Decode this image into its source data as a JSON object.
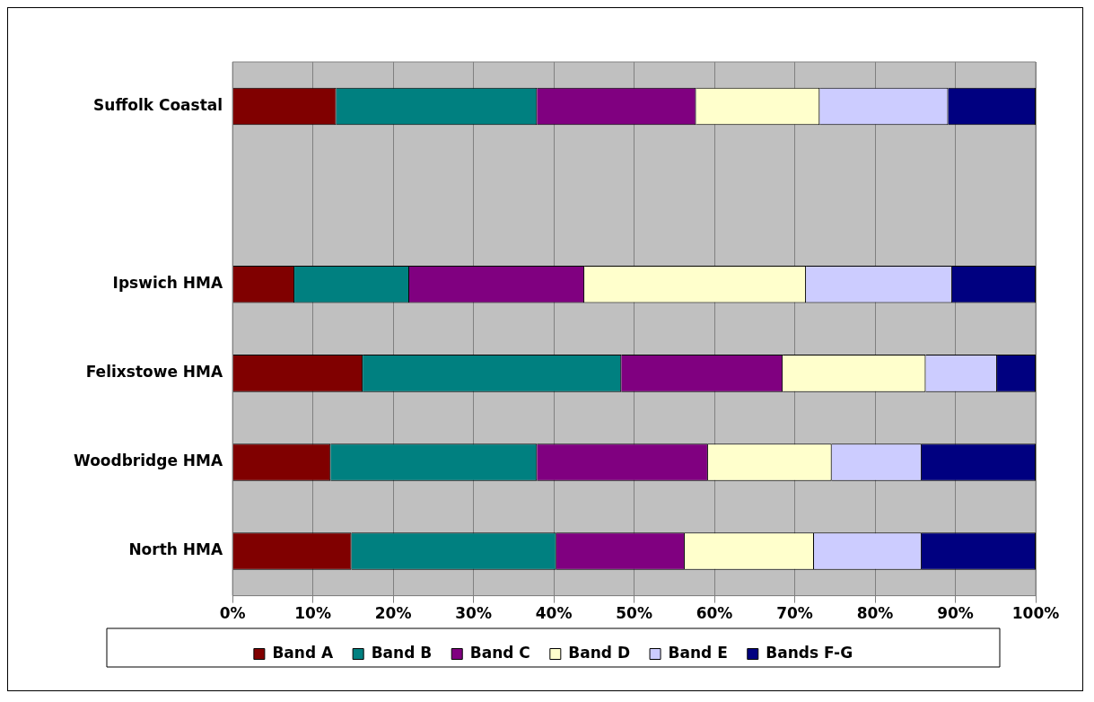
{
  "chart_data": {
    "type": "bar",
    "orientation": "horizontal",
    "stacked": true,
    "categories": [
      "Suffolk Coastal",
      null,
      "Ipswich HMA",
      "Felixstowe HMA",
      "Woodbridge HMA",
      "North HMA"
    ],
    "series": [
      {
        "name": "Band A",
        "color": "#800000",
        "values": [
          12.9,
          null,
          7.7,
          16.2,
          12.2,
          14.8
        ]
      },
      {
        "name": "Band B",
        "color": "#008080",
        "values": [
          25.0,
          null,
          14.3,
          32.2,
          25.7,
          25.5
        ]
      },
      {
        "name": "Band C",
        "color": "#800080",
        "values": [
          19.8,
          null,
          21.8,
          20.1,
          21.3,
          16.0
        ]
      },
      {
        "name": "Band D",
        "color": "#ffffcc",
        "values": [
          15.4,
          null,
          27.6,
          17.8,
          15.4,
          16.1
        ]
      },
      {
        "name": "Band E",
        "color": "#ccccff",
        "values": [
          16.0,
          null,
          18.2,
          8.9,
          11.2,
          13.4
        ]
      },
      {
        "name": "Bands F-G",
        "color": "#000080",
        "values": [
          10.9,
          null,
          10.4,
          4.8,
          14.2,
          14.2
        ]
      }
    ],
    "xlim": [
      0,
      100
    ],
    "xticks": [
      {
        "value": 0,
        "label": "0%"
      },
      {
        "value": 10,
        "label": "10%"
      },
      {
        "value": 20,
        "label": "20%"
      },
      {
        "value": 30,
        "label": "30%"
      },
      {
        "value": 40,
        "label": "40%"
      },
      {
        "value": 50,
        "label": "50%"
      },
      {
        "value": 60,
        "label": "60%"
      },
      {
        "value": 70,
        "label": "70%"
      },
      {
        "value": 80,
        "label": "80%"
      },
      {
        "value": 90,
        "label": "90%"
      },
      {
        "value": 100,
        "label": "100%"
      }
    ],
    "grid": "x",
    "legend": "bottom"
  }
}
